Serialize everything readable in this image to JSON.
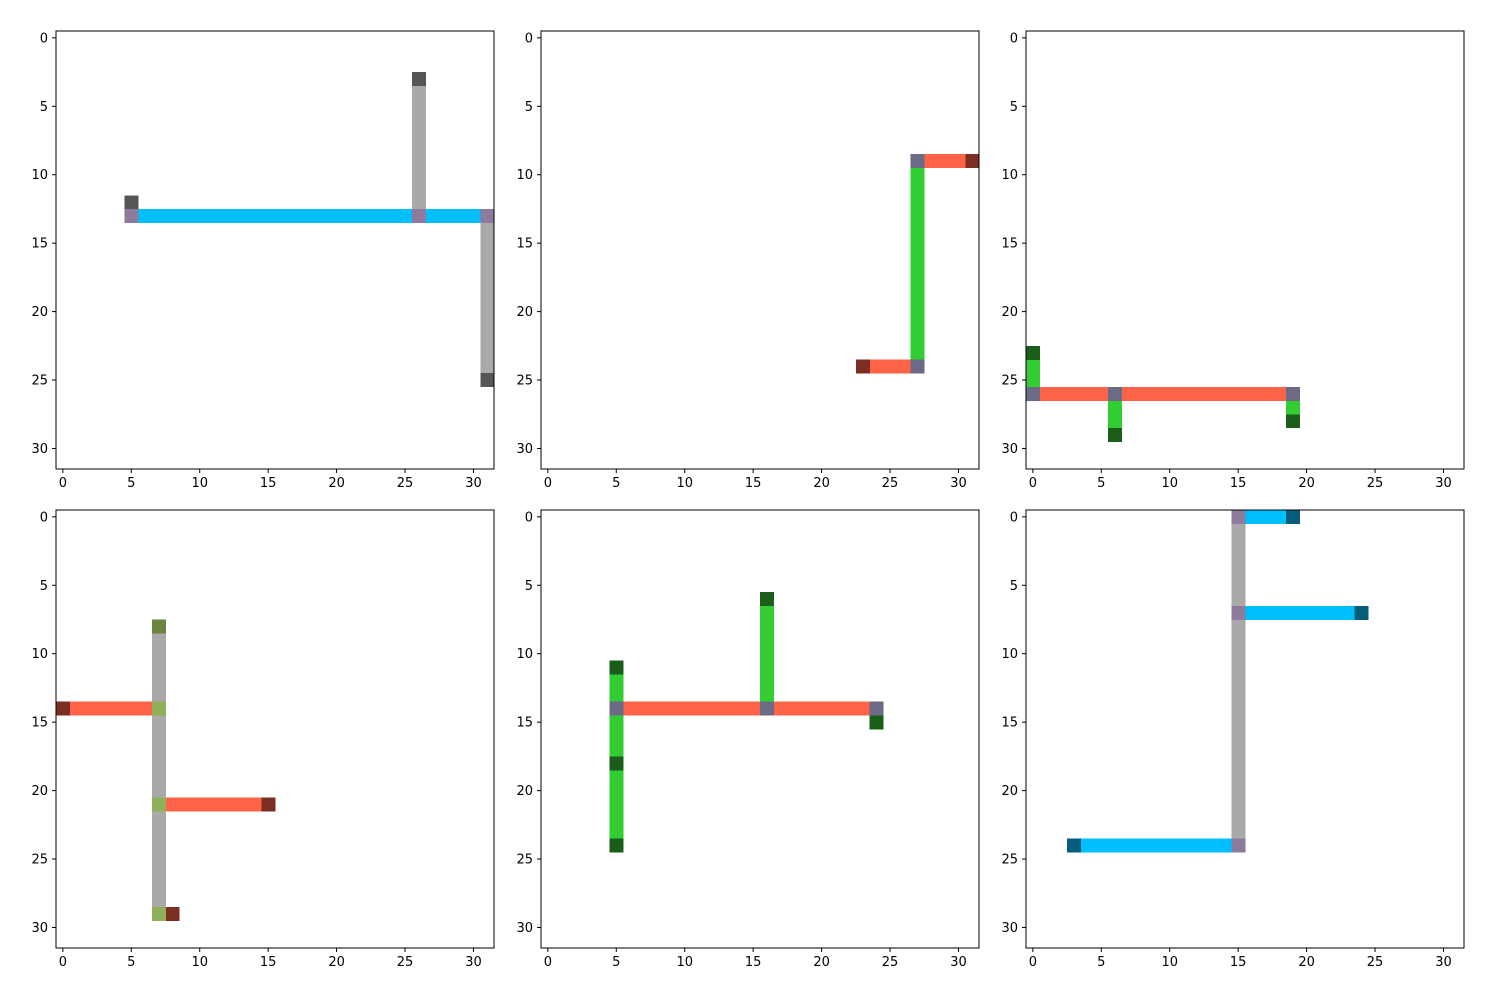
{
  "chart_data": [
    {
      "type": "heatmap",
      "title": "",
      "grid_size": 32,
      "xlim": [
        -0.5,
        31.5
      ],
      "ylim": [
        31.5,
        -0.5
      ],
      "xticks": [
        0,
        5,
        10,
        15,
        20,
        25,
        30
      ],
      "yticks": [
        0,
        5,
        10,
        15,
        20,
        25,
        30
      ],
      "grid": false,
      "cells": [
        {
          "x": 6,
          "y": 13,
          "w": 20,
          "h": 1,
          "color": "#00BFFF"
        },
        {
          "x": 27,
          "y": 13,
          "w": 4,
          "h": 1,
          "color": "#00BFFF"
        },
        {
          "x": 26,
          "y": 4,
          "w": 1,
          "h": 9,
          "color": "#A9A9A9"
        },
        {
          "x": 31,
          "y": 14,
          "w": 1,
          "h": 11,
          "color": "#A9A9A9"
        },
        {
          "x": 5,
          "y": 12,
          "w": 1,
          "h": 1,
          "color": "#555555"
        },
        {
          "x": 26,
          "y": 3,
          "w": 1,
          "h": 1,
          "color": "#555555"
        },
        {
          "x": 31,
          "y": 25,
          "w": 1,
          "h": 1,
          "color": "#555555"
        },
        {
          "x": 5,
          "y": 13,
          "w": 1,
          "h": 1,
          "color": "#8C7B9A"
        },
        {
          "x": 26,
          "y": 13,
          "w": 1,
          "h": 1,
          "color": "#8C7B9A"
        },
        {
          "x": 31,
          "y": 13,
          "w": 1,
          "h": 1,
          "color": "#8C7B9A"
        }
      ]
    },
    {
      "type": "heatmap",
      "title": "",
      "grid_size": 32,
      "xlim": [
        -0.5,
        31.5
      ],
      "ylim": [
        31.5,
        -0.5
      ],
      "xticks": [
        0,
        5,
        10,
        15,
        20,
        25,
        30
      ],
      "yticks": [
        0,
        5,
        10,
        15,
        20,
        25,
        30
      ],
      "grid": false,
      "cells": [
        {
          "x": 27,
          "y": 10,
          "w": 1,
          "h": 14,
          "color": "#32CD32"
        },
        {
          "x": 28,
          "y": 9,
          "w": 3,
          "h": 1,
          "color": "#FF6347"
        },
        {
          "x": 24,
          "y": 24,
          "w": 3,
          "h": 1,
          "color": "#FF6347"
        },
        {
          "x": 31,
          "y": 9,
          "w": 1,
          "h": 1,
          "color": "#7B2E22"
        },
        {
          "x": 23,
          "y": 24,
          "w": 1,
          "h": 1,
          "color": "#7B2E22"
        },
        {
          "x": 27,
          "y": 9,
          "w": 1,
          "h": 1,
          "color": "#6B6B85"
        },
        {
          "x": 27,
          "y": 24,
          "w": 1,
          "h": 1,
          "color": "#6B6B85"
        }
      ]
    },
    {
      "type": "heatmap",
      "title": "",
      "grid_size": 32,
      "xlim": [
        -0.5,
        31.5
      ],
      "ylim": [
        31.5,
        -0.5
      ],
      "xticks": [
        0,
        5,
        10,
        15,
        20,
        25,
        30
      ],
      "yticks": [
        0,
        5,
        10,
        15,
        20,
        25,
        30
      ],
      "grid": false,
      "cells": [
        {
          "x": 1,
          "y": 26,
          "w": 5,
          "h": 1,
          "color": "#FF6347"
        },
        {
          "x": 7,
          "y": 26,
          "w": 12,
          "h": 1,
          "color": "#FF6347"
        },
        {
          "x": 0,
          "y": 24,
          "w": 1,
          "h": 2,
          "color": "#32CD32"
        },
        {
          "x": 6,
          "y": 27,
          "w": 1,
          "h": 2,
          "color": "#32CD32"
        },
        {
          "x": 19,
          "y": 27,
          "w": 1,
          "h": 1,
          "color": "#32CD32"
        },
        {
          "x": 0,
          "y": 23,
          "w": 1,
          "h": 1,
          "color": "#1A5E1A"
        },
        {
          "x": 6,
          "y": 29,
          "w": 1,
          "h": 1,
          "color": "#1A5E1A"
        },
        {
          "x": 19,
          "y": 28,
          "w": 1,
          "h": 1,
          "color": "#1A5E1A"
        },
        {
          "x": 0,
          "y": 26,
          "w": 1,
          "h": 1,
          "color": "#6B6B85"
        },
        {
          "x": 6,
          "y": 26,
          "w": 1,
          "h": 1,
          "color": "#6B6B85"
        },
        {
          "x": 19,
          "y": 26,
          "w": 1,
          "h": 1,
          "color": "#6B6B85"
        }
      ]
    },
    {
      "type": "heatmap",
      "title": "",
      "grid_size": 32,
      "xlim": [
        -0.5,
        31.5
      ],
      "ylim": [
        31.5,
        -0.5
      ],
      "xticks": [
        0,
        5,
        10,
        15,
        20,
        25,
        30
      ],
      "yticks": [
        0,
        5,
        10,
        15,
        20,
        25,
        30
      ],
      "grid": false,
      "cells": [
        {
          "x": 7,
          "y": 9,
          "w": 1,
          "h": 5,
          "color": "#A9A9A9"
        },
        {
          "x": 7,
          "y": 15,
          "w": 1,
          "h": 6,
          "color": "#A9A9A9"
        },
        {
          "x": 7,
          "y": 22,
          "w": 1,
          "h": 7,
          "color": "#A9A9A9"
        },
        {
          "x": 1,
          "y": 14,
          "w": 6,
          "h": 1,
          "color": "#FF6347"
        },
        {
          "x": 8,
          "y": 21,
          "w": 7,
          "h": 1,
          "color": "#FF6347"
        },
        {
          "x": 7,
          "y": 8,
          "w": 1,
          "h": 1,
          "color": "#6B8540"
        },
        {
          "x": 0,
          "y": 14,
          "w": 1,
          "h": 1,
          "color": "#7B2E22"
        },
        {
          "x": 15,
          "y": 21,
          "w": 1,
          "h": 1,
          "color": "#7B2E22"
        },
        {
          "x": 8,
          "y": 29,
          "w": 1,
          "h": 1,
          "color": "#7B2E22"
        },
        {
          "x": 7,
          "y": 14,
          "w": 1,
          "h": 1,
          "color": "#8FAF58"
        },
        {
          "x": 7,
          "y": 21,
          "w": 1,
          "h": 1,
          "color": "#8FAF58"
        },
        {
          "x": 7,
          "y": 29,
          "w": 1,
          "h": 1,
          "color": "#8FAF58"
        }
      ]
    },
    {
      "type": "heatmap",
      "title": "",
      "grid_size": 32,
      "xlim": [
        -0.5,
        31.5
      ],
      "ylim": [
        31.5,
        -0.5
      ],
      "xticks": [
        0,
        5,
        10,
        15,
        20,
        25,
        30
      ],
      "yticks": [
        0,
        5,
        10,
        15,
        20,
        25,
        30
      ],
      "grid": false,
      "cells": [
        {
          "x": 6,
          "y": 14,
          "w": 10,
          "h": 1,
          "color": "#FF6347"
        },
        {
          "x": 17,
          "y": 14,
          "w": 7,
          "h": 1,
          "color": "#FF6347"
        },
        {
          "x": 5,
          "y": 12,
          "w": 1,
          "h": 2,
          "color": "#32CD32"
        },
        {
          "x": 5,
          "y": 15,
          "w": 1,
          "h": 3,
          "color": "#32CD32"
        },
        {
          "x": 5,
          "y": 19,
          "w": 1,
          "h": 5,
          "color": "#32CD32"
        },
        {
          "x": 16,
          "y": 7,
          "w": 1,
          "h": 7,
          "color": "#32CD32"
        },
        {
          "x": 5,
          "y": 11,
          "w": 1,
          "h": 1,
          "color": "#1A5E1A"
        },
        {
          "x": 5,
          "y": 18,
          "w": 1,
          "h": 1,
          "color": "#1A5E1A"
        },
        {
          "x": 5,
          "y": 24,
          "w": 1,
          "h": 1,
          "color": "#1A5E1A"
        },
        {
          "x": 16,
          "y": 6,
          "w": 1,
          "h": 1,
          "color": "#1A5E1A"
        },
        {
          "x": 24,
          "y": 15,
          "w": 1,
          "h": 1,
          "color": "#1A5E1A"
        },
        {
          "x": 5,
          "y": 14,
          "w": 1,
          "h": 1,
          "color": "#6B6B85"
        },
        {
          "x": 16,
          "y": 14,
          "w": 1,
          "h": 1,
          "color": "#6B6B85"
        },
        {
          "x": 24,
          "y": 14,
          "w": 1,
          "h": 1,
          "color": "#6B6B85"
        }
      ]
    },
    {
      "type": "heatmap",
      "title": "",
      "grid_size": 32,
      "xlim": [
        -0.5,
        31.5
      ],
      "ylim": [
        31.5,
        -0.5
      ],
      "xticks": [
        0,
        5,
        10,
        15,
        20,
        25,
        30
      ],
      "yticks": [
        0,
        5,
        10,
        15,
        20,
        25,
        30
      ],
      "grid": false,
      "cells": [
        {
          "x": 15,
          "y": 1,
          "w": 1,
          "h": 6,
          "color": "#A9A9A9"
        },
        {
          "x": 15,
          "y": 8,
          "w": 1,
          "h": 16,
          "color": "#A9A9A9"
        },
        {
          "x": 16,
          "y": 0,
          "w": 3,
          "h": 1,
          "color": "#00BFFF"
        },
        {
          "x": 16,
          "y": 7,
          "w": 8,
          "h": 1,
          "color": "#00BFFF"
        },
        {
          "x": 4,
          "y": 24,
          "w": 11,
          "h": 1,
          "color": "#00BFFF"
        },
        {
          "x": 19,
          "y": 0,
          "w": 1,
          "h": 1,
          "color": "#065E7A"
        },
        {
          "x": 24,
          "y": 7,
          "w": 1,
          "h": 1,
          "color": "#065E7A"
        },
        {
          "x": 3,
          "y": 24,
          "w": 1,
          "h": 1,
          "color": "#065E7A"
        },
        {
          "x": 15,
          "y": 0,
          "w": 1,
          "h": 1,
          "color": "#8C7B9A"
        },
        {
          "x": 15,
          "y": 7,
          "w": 1,
          "h": 1,
          "color": "#8C7B9A"
        },
        {
          "x": 15,
          "y": 24,
          "w": 1,
          "h": 1,
          "color": "#8C7B9A"
        }
      ]
    }
  ]
}
